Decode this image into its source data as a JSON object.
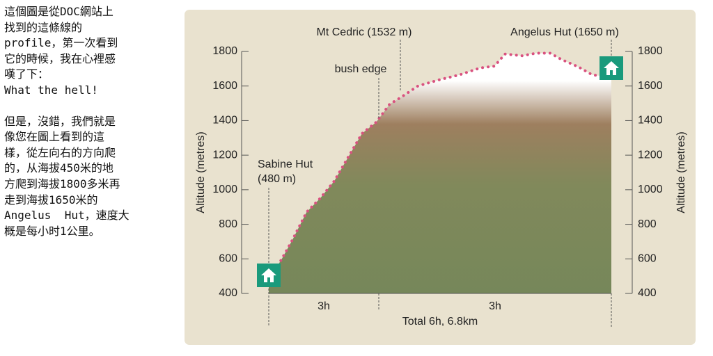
{
  "article": {
    "paragraphs": [
      [
        "這個圖是從DOC網站上",
        "找到的這條線的",
        "profile，第一次看到",
        "它的時候，我在心裡感",
        "嘆了下：",
        "What the hell!"
      ],
      [
        "但是，沒錯，我們就是",
        "像您在圖上看到的這",
        "樣，從左向右的方向爬",
        "的，从海拔450米的地",
        "方爬到海拔1800多米再",
        "走到海拔1650米的",
        "Angelus  Hut，速度大",
        "概是每小时1公里。"
      ]
    ]
  },
  "chart_data": {
    "type": "area",
    "y_label": "Altitude (metres)",
    "y2_label": "Altitude (metres)",
    "x": [
      0,
      0.26,
      0.47,
      0.75,
      1.02,
      1.3,
      1.58,
      1.85,
      2.13,
      2.4,
      2.61,
      2.96,
      3.37,
      3.79,
      4.2,
      4.48,
      4.69,
      5.03,
      5.31,
      5.59,
      5.8,
      6.15,
      6.42,
      6.8
    ],
    "values": [
      480,
      600,
      710,
      870,
      950,
      1050,
      1190,
      1325,
      1390,
      1495,
      1532,
      1600,
      1635,
      1665,
      1705,
      1715,
      1785,
      1775,
      1790,
      1790,
      1755,
      1710,
      1665,
      1650
    ],
    "color": "#d9517f",
    "xlim": [
      0,
      6.8
    ],
    "ylim": [
      400,
      1800
    ],
    "yticks": [
      400,
      600,
      800,
      1000,
      1200,
      1400,
      1600,
      1800
    ],
    "y2lim": [
      400,
      1800
    ],
    "y2ticks": [
      400,
      600,
      800,
      1000,
      1200,
      1400,
      1600,
      1800
    ],
    "annotations": {
      "start_name": "Sabine Hut",
      "start_alt": "(480 m)",
      "bush": "bush edge",
      "peak": "Mt Cedric (1532 m)",
      "end": "Angelus Hut (1650 m)"
    },
    "segments": [
      "3h",
      "3h"
    ],
    "total": "Total 6h, 6.8km"
  }
}
